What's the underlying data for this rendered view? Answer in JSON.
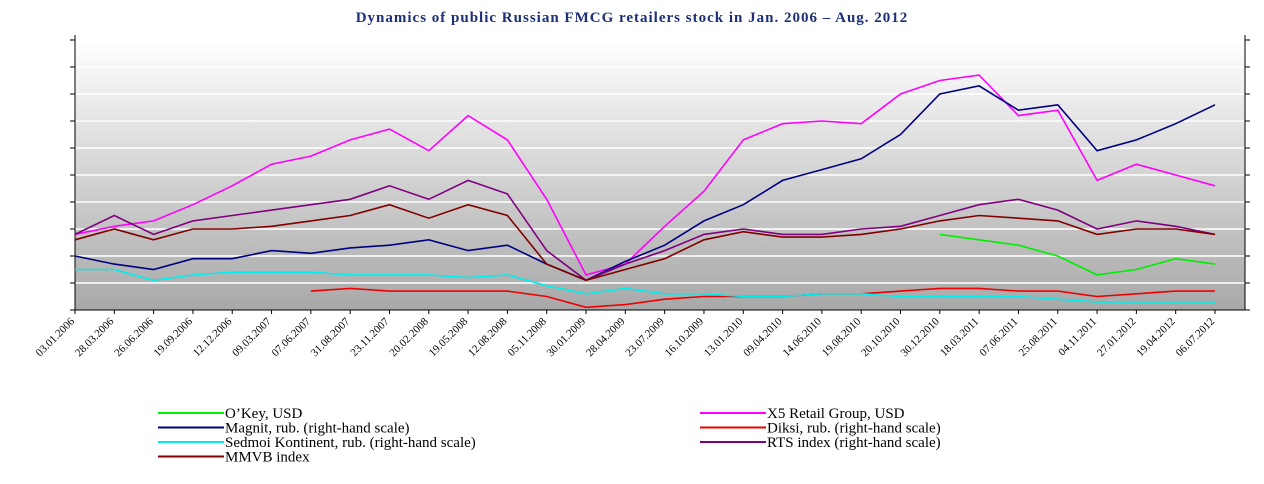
{
  "chart_data": {
    "type": "line",
    "title": "Dynamics of public Russian FMCG retailers stock in Jan. 2006 – Aug. 2012",
    "categories": [
      "03.01.2006",
      "28.03.2006",
      "26.06.2006",
      "19.09.2006",
      "12.12.2006",
      "09.03.2007",
      "07.06.2007",
      "31.08.2007",
      "23.11.2007",
      "20.02.2008",
      "19.05.2008",
      "12.08.2008",
      "05.11.2008",
      "30.01.2009",
      "28.04.2009",
      "23.07.2009",
      "16.10.2009",
      "13.01.2010",
      "09.04.2010",
      "14.06.2010",
      "19.08.2010",
      "20.10.2010",
      "30.12.2010",
      "18.03.2011",
      "07.06.2011",
      "25.08.2011",
      "04.11.2011",
      "27.01.2012",
      "19.04.2012",
      "06.07.2012"
    ],
    "ylim": [
      0,
      10
    ],
    "yticks": [
      0,
      1,
      2,
      3,
      4,
      5,
      6,
      7,
      8,
      9,
      10
    ],
    "y2lim": [
      0,
      10
    ],
    "y2ticks": [
      0,
      1,
      2,
      3,
      4,
      5,
      6,
      7,
      8,
      9,
      10
    ],
    "grid": true,
    "legend": "bottom",
    "series": [
      {
        "name": "O’Key, USD",
        "color": "#00ee00",
        "values": [
          null,
          null,
          null,
          null,
          null,
          null,
          null,
          null,
          null,
          null,
          null,
          null,
          null,
          null,
          null,
          null,
          null,
          null,
          null,
          null,
          null,
          null,
          2.8,
          2.6,
          2.4,
          2.0,
          1.3,
          1.5,
          1.9,
          1.7
        ]
      },
      {
        "name": " X5 Retail Group, USD",
        "color": "#ff00ff",
        "values": [
          2.8,
          3.1,
          3.3,
          3.9,
          4.6,
          5.4,
          5.7,
          6.3,
          6.7,
          5.9,
          7.2,
          6.3,
          4.1,
          1.3,
          1.7,
          3.1,
          4.4,
          6.3,
          6.9,
          7.0,
          6.9,
          8.0,
          8.5,
          8.7,
          7.2,
          7.4,
          4.8,
          5.4,
          5.0,
          4.6
        ]
      },
      {
        "name": "Magnit, rub. (right-hand scale)",
        "color": "#000080",
        "axis": "y2",
        "values": [
          2.0,
          1.7,
          1.5,
          1.9,
          1.9,
          2.2,
          2.1,
          2.3,
          2.4,
          2.6,
          2.2,
          2.4,
          1.7,
          1.1,
          1.8,
          2.4,
          3.3,
          3.9,
          4.8,
          5.2,
          5.6,
          6.5,
          8.0,
          8.3,
          7.4,
          7.6,
          5.9,
          6.3,
          6.9,
          7.6
        ]
      },
      {
        "name": "Diksi, rub. (right-hand scale)",
        "color": "#ee0000",
        "axis": "y2",
        "values": [
          null,
          null,
          null,
          null,
          null,
          null,
          0.7,
          0.8,
          0.7,
          0.7,
          0.7,
          0.7,
          0.5,
          0.1,
          0.2,
          0.4,
          0.5,
          0.5,
          0.5,
          0.6,
          0.6,
          0.7,
          0.8,
          0.8,
          0.7,
          0.7,
          0.5,
          0.6,
          0.7,
          0.7
        ]
      },
      {
        "name": "Sedmoi Kontinent, rub. (right-hand scale)",
        "color": "#00eeee",
        "axis": "y2",
        "values": [
          1.5,
          1.5,
          1.1,
          1.3,
          1.4,
          1.4,
          1.4,
          1.3,
          1.3,
          1.3,
          1.2,
          1.3,
          0.9,
          0.6,
          0.8,
          0.6,
          0.6,
          0.5,
          0.5,
          0.6,
          0.6,
          0.5,
          0.5,
          0.5,
          0.5,
          0.4,
          0.3,
          0.3,
          0.3,
          0.3
        ]
      },
      {
        "name": "RTS index (right-hand scale)",
        "color": "#800080",
        "axis": "y2",
        "values": [
          2.8,
          3.5,
          2.8,
          3.3,
          3.5,
          3.7,
          3.9,
          4.1,
          4.6,
          4.1,
          4.8,
          4.3,
          2.2,
          1.1,
          1.7,
          2.2,
          2.8,
          3.0,
          2.8,
          2.8,
          3.0,
          3.1,
          3.5,
          3.9,
          4.1,
          3.7,
          3.0,
          3.3,
          3.1,
          2.8
        ]
      },
      {
        "name": "MMVB index",
        "color": "#800000",
        "values": [
          2.6,
          3.0,
          2.6,
          3.0,
          3.0,
          3.1,
          3.3,
          3.5,
          3.9,
          3.4,
          3.9,
          3.5,
          1.7,
          1.1,
          1.5,
          1.9,
          2.6,
          2.9,
          2.7,
          2.7,
          2.8,
          3.0,
          3.3,
          3.5,
          3.4,
          3.3,
          2.8,
          3.0,
          3.0,
          2.8
        ]
      }
    ]
  }
}
